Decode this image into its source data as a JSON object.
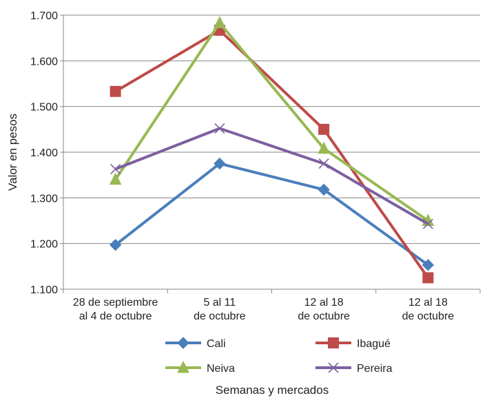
{
  "chart_data": {
    "type": "line",
    "title": "",
    "xlabel": "Semanas y mercados",
    "ylabel": "Valor en pesos",
    "ylim": [
      1100,
      1700
    ],
    "yticks": [
      1100,
      1200,
      1300,
      1400,
      1500,
      1600,
      1700
    ],
    "ytick_labels": [
      "1.100",
      "1.200",
      "1.300",
      "1.400",
      "1.500",
      "1.600",
      "1.700"
    ],
    "categories": [
      [
        "28 de septiembre",
        "al 4 de octubre"
      ],
      [
        "5 al 11",
        "de octubre"
      ],
      [
        "12 al 18",
        "de octubre"
      ],
      [
        "12 al 18",
        "de octubre"
      ]
    ],
    "grid": "horizontal",
    "legend_position": "bottom",
    "series": [
      {
        "name": "Cali",
        "color": "#4a7ebb",
        "marker": "diamond",
        "values": [
          1197,
          1375,
          1318,
          1153
        ]
      },
      {
        "name": "Ibagué",
        "color": "#be4b48",
        "marker": "square",
        "values": [
          1533,
          1667,
          1450,
          1125
        ]
      },
      {
        "name": "Neiva",
        "color": "#98b954",
        "marker": "triangle",
        "values": [
          1340,
          1683,
          1408,
          1250
        ]
      },
      {
        "name": "Pereira",
        "color": "#7d60a0",
        "marker": "x",
        "values": [
          1363,
          1452,
          1375,
          1243
        ]
      }
    ]
  }
}
